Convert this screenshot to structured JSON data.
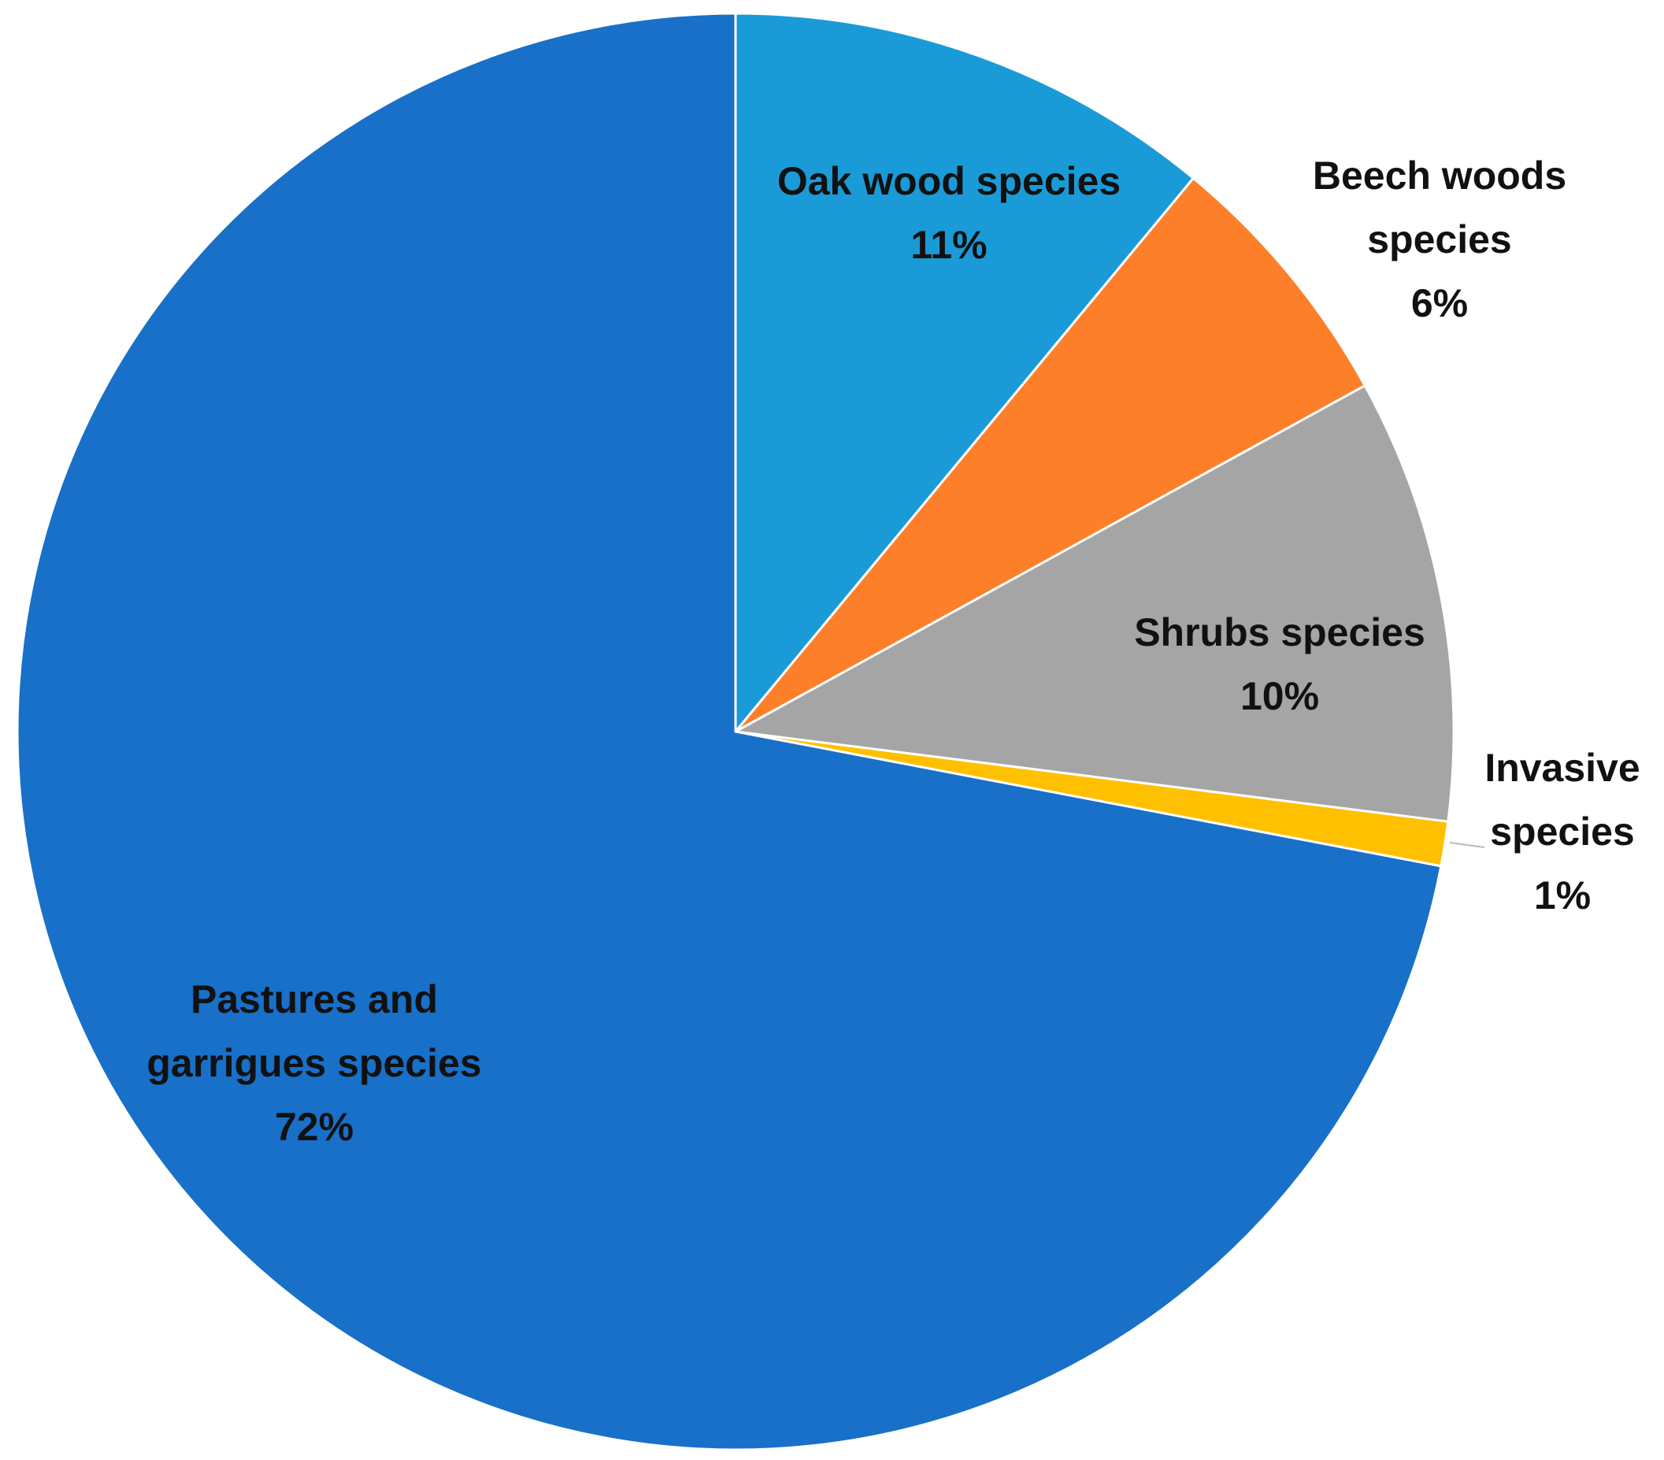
{
  "chart_data": {
    "type": "pie",
    "categories": [
      "Oak wood species",
      "Beech woods species",
      "Shrubs species",
      "Invasive species",
      "Pastures and garrigues species"
    ],
    "values": [
      11,
      6,
      10,
      1,
      72
    ],
    "value_labels": [
      "11%",
      "6%",
      "10%",
      "1%",
      "72%"
    ],
    "colors": [
      "#1a9bd7",
      "#fd7f2a",
      "#a5a5a5",
      "#ffc000",
      "#1870c8"
    ]
  }
}
